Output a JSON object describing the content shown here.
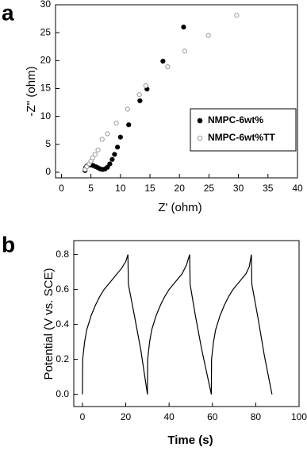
{
  "chart_data": [
    {
      "type": "scatter",
      "panel": "a",
      "xlabel": "Z' (ohm)",
      "ylabel": "-Z'' (ohm)",
      "xlim": [
        -1,
        40
      ],
      "ylim": [
        -1,
        30
      ],
      "xticks": [
        0,
        5,
        10,
        15,
        20,
        25,
        30,
        35,
        40
      ],
      "yticks": [
        0,
        5,
        10,
        15,
        20,
        25,
        30
      ],
      "legend": "right",
      "series": [
        {
          "name": "NMPC-6wt%",
          "color": "#000000",
          "filled": true,
          "x": [
            4.0,
            4.1,
            4.3,
            4.6,
            5.0,
            5.4,
            5.8,
            6.2,
            6.6,
            7.0,
            7.4,
            7.8,
            8.2,
            8.6,
            9.0,
            9.5,
            10.0,
            11.4,
            13.3,
            14.5,
            17.2,
            20.7
          ],
          "values": [
            0.3,
            0.8,
            1.1,
            1.3,
            1.3,
            1.2,
            1.0,
            0.8,
            0.6,
            0.5,
            0.6,
            0.9,
            1.5,
            2.3,
            3.2,
            4.5,
            6.3,
            8.5,
            12.8,
            14.9,
            19.9,
            26.0
          ]
        },
        {
          "name": "NMPC-6wt%TT",
          "color": "#999999",
          "filled": false,
          "x": [
            4.0,
            4.3,
            4.7,
            5.0,
            5.3,
            5.7,
            6.2,
            6.9,
            7.8,
            9.3,
            11.2,
            13.2,
            14.3,
            18.0,
            20.9,
            24.9,
            29.7
          ],
          "values": [
            0.5,
            1.0,
            1.5,
            2.0,
            2.6,
            3.2,
            4.0,
            5.9,
            6.9,
            8.8,
            11.3,
            13.9,
            15.5,
            18.9,
            21.7,
            24.5,
            28.1
          ]
        }
      ]
    },
    {
      "type": "line",
      "panel": "b",
      "xlabel": "Time (s)",
      "ylabel": "Potential (V vs. SCE)",
      "xlim": [
        -4,
        100
      ],
      "ylim": [
        -0.07,
        0.88
      ],
      "xticks": [
        0,
        20,
        40,
        60,
        80,
        100
      ],
      "yticks": [
        {
          "value": 0,
          "label": "0.0"
        },
        0.2,
        0.4,
        0.6,
        0.8
      ],
      "color": "#000000",
      "x": [
        0,
        0.1,
        1,
        2,
        4,
        6,
        8,
        10,
        12,
        14,
        16,
        18,
        20,
        21,
        21.2,
        24,
        27,
        30,
        30.1,
        31,
        32,
        34,
        36,
        38,
        40,
        42,
        44,
        46,
        48,
        49.5,
        49.7,
        52,
        55,
        59.5,
        59.6,
        60.5,
        61.5,
        63.5,
        65.5,
        67.5,
        69.5,
        71.5,
        73.5,
        75.5,
        77,
        78,
        78.2,
        81,
        84,
        87.5
      ],
      "values": [
        0,
        0.2,
        0.3,
        0.37,
        0.45,
        0.51,
        0.56,
        0.6,
        0.63,
        0.66,
        0.69,
        0.72,
        0.76,
        0.8,
        0.63,
        0.45,
        0.25,
        0,
        0.2,
        0.3,
        0.37,
        0.45,
        0.51,
        0.56,
        0.6,
        0.63,
        0.66,
        0.69,
        0.74,
        0.8,
        0.63,
        0.46,
        0.26,
        0,
        0.2,
        0.3,
        0.37,
        0.45,
        0.51,
        0.56,
        0.6,
        0.63,
        0.66,
        0.69,
        0.73,
        0.8,
        0.63,
        0.44,
        0.22,
        0
      ]
    }
  ]
}
